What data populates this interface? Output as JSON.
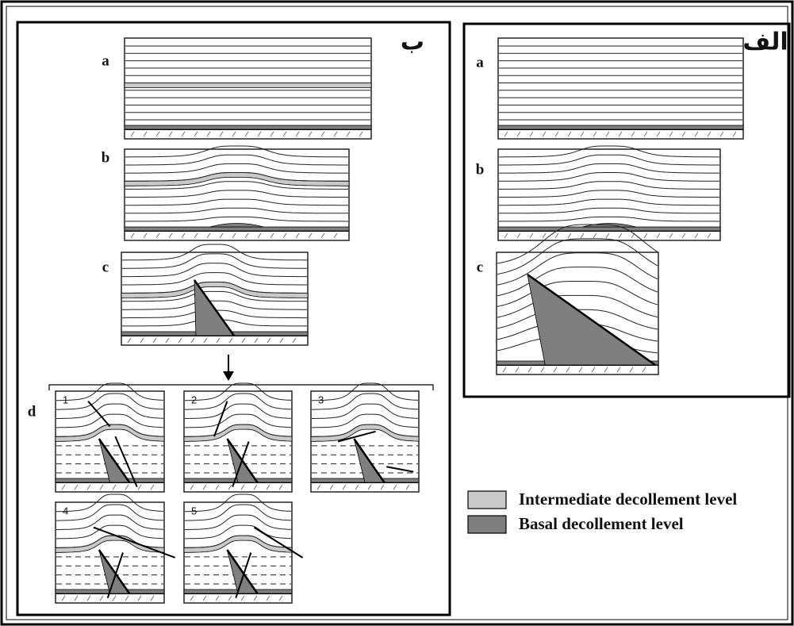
{
  "panels": [
    {
      "title": "ب",
      "sections": [
        {
          "label": "a"
        },
        {
          "label": "b"
        },
        {
          "label": "c"
        },
        {
          "label": "d",
          "subpanels": [
            "1",
            "2",
            "3",
            "4",
            "5"
          ]
        }
      ]
    },
    {
      "title": "الف",
      "sections": [
        {
          "label": "a"
        },
        {
          "label": "b"
        },
        {
          "label": "c"
        }
      ]
    }
  ],
  "legend": [
    {
      "label": "Intermediate decollement level",
      "color": "#c9c9c9"
    },
    {
      "label": "Basal decollement level",
      "color": "#7f7f7f"
    }
  ]
}
